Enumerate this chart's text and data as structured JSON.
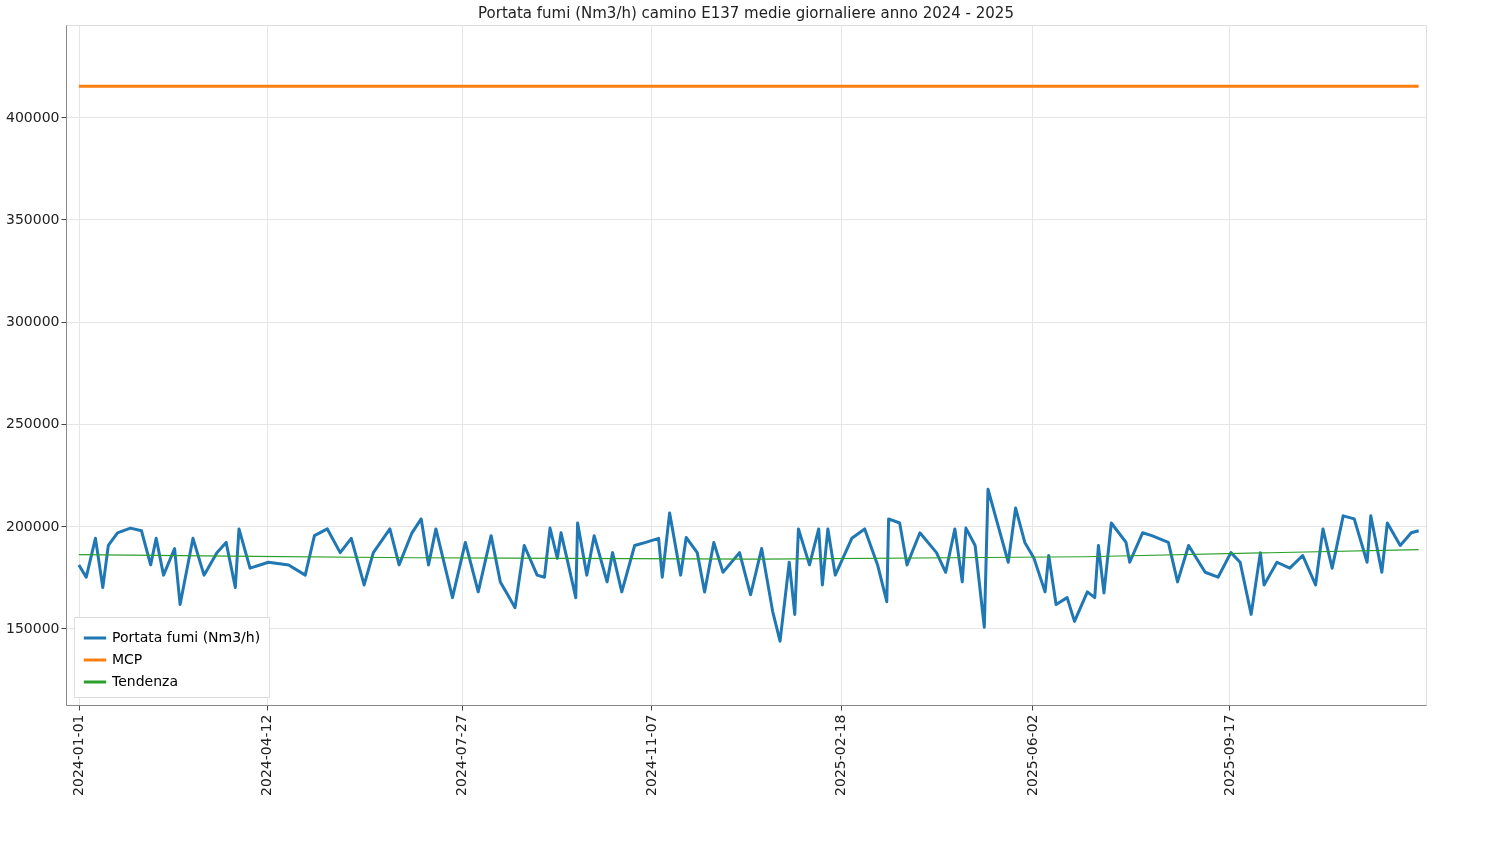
{
  "chart_data": {
    "type": "line",
    "title": "Portata fumi (Nm3/h) camino E137 medie giornaliere anno 2024 - 2025",
    "xlim": [
      "2023-12-25",
      "2026-01-02"
    ],
    "xticks": [
      "2024-01-01",
      "2024-04-12",
      "2024-07-27",
      "2024-11-07",
      "2025-02-18",
      "2025-06-02",
      "2025-09-17"
    ],
    "ylim": [
      112500,
      445000
    ],
    "yticks": [
      150000,
      200000,
      250000,
      300000,
      350000,
      400000
    ],
    "grid": true,
    "legend": "bottom left",
    "series": [
      {
        "name": "Portata fumi (Nm3/h)",
        "color": "#1f77b4",
        "x": [
          "2024-01-01",
          "2024-01-05",
          "2024-01-10",
          "2024-01-14",
          "2024-01-17",
          "2024-01-22",
          "2024-01-29",
          "2024-02-04",
          "2024-02-09",
          "2024-02-12",
          "2024-02-16",
          "2024-02-22",
          "2024-02-25",
          "2024-03-03",
          "2024-03-09",
          "2024-03-16",
          "2024-03-21",
          "2024-03-26",
          "2024-03-28",
          "2024-04-03",
          "2024-04-13",
          "2024-04-24",
          "2024-05-03",
          "2024-05-08",
          "2024-05-15",
          "2024-05-22",
          "2024-05-28",
          "2024-06-04",
          "2024-06-09",
          "2024-06-18",
          "2024-06-23",
          "2024-06-30",
          "2024-07-05",
          "2024-07-09",
          "2024-07-13",
          "2024-07-22",
          "2024-07-29",
          "2024-08-05",
          "2024-08-12",
          "2024-08-17",
          "2024-08-25",
          "2024-08-30",
          "2024-09-06",
          "2024-09-10",
          "2024-09-13",
          "2024-09-17",
          "2024-09-19",
          "2024-09-23",
          "2024-09-27",
          "2024-09-28",
          "2024-10-03",
          "2024-10-07",
          "2024-10-14",
          "2024-10-17",
          "2024-10-22",
          "2024-10-29",
          "2024-11-04",
          "2024-11-11",
          "2024-11-13",
          "2024-11-17",
          "2024-11-23",
          "2024-11-26",
          "2024-12-02",
          "2024-12-06",
          "2024-12-11",
          "2024-12-16",
          "2024-12-25",
          "2024-12-31",
          "2025-01-06",
          "2025-01-12",
          "2025-01-16",
          "2025-01-21",
          "2025-01-24",
          "2025-01-26",
          "2025-02-01",
          "2025-02-06",
          "2025-02-08",
          "2025-02-11",
          "2025-02-15",
          "2025-02-24",
          "2025-03-03",
          "2025-03-10",
          "2025-03-15",
          "2025-03-16",
          "2025-03-22",
          "2025-03-26",
          "2025-04-02",
          "2025-04-11",
          "2025-04-16",
          "2025-04-21",
          "2025-04-25",
          "2025-04-27",
          "2025-05-02",
          "2025-05-07",
          "2025-05-09",
          "2025-05-13",
          "2025-05-20",
          "2025-05-24",
          "2025-05-29",
          "2025-06-03",
          "2025-06-09",
          "2025-06-11",
          "2025-06-15",
          "2025-06-21",
          "2025-06-25",
          "2025-07-02",
          "2025-07-06",
          "2025-07-08",
          "2025-07-11",
          "2025-07-15",
          "2025-07-23",
          "2025-07-25",
          "2025-08-01",
          "2025-08-06",
          "2025-08-15",
          "2025-08-20",
          "2025-08-26",
          "2025-09-04",
          "2025-09-11",
          "2025-09-18",
          "2025-09-23",
          "2025-09-29",
          "2025-10-04",
          "2025-10-06",
          "2025-10-13",
          "2025-10-20",
          "2025-10-27",
          "2025-11-03",
          "2025-11-07",
          "2025-11-12",
          "2025-11-18",
          "2025-11-24",
          "2025-12-01",
          "2025-12-03",
          "2025-12-09",
          "2025-12-12",
          "2025-12-19",
          "2025-12-25",
          "2025-12-29"
        ],
        "values": [
          181000,
          175000,
          194000,
          170000,
          190500,
          196700,
          199000,
          197700,
          181000,
          194000,
          176000,
          189000,
          161600,
          194000,
          176000,
          187000,
          192000,
          170000,
          198600,
          179400,
          182300,
          181000,
          176000,
          195300,
          198600,
          187000,
          194000,
          171200,
          187000,
          198600,
          181000,
          196700,
          203500,
          181000,
          198600,
          165000,
          192000,
          167800,
          195300,
          172700,
          160100,
          190500,
          176000,
          175000,
          199000,
          184200,
          196700,
          181000,
          165000,
          201500,
          176000,
          195300,
          172700,
          187000,
          167800,
          190500,
          192000,
          194000,
          175000,
          206400,
          176000,
          194400,
          187000,
          167800,
          192000,
          177400,
          187000,
          166400,
          189000,
          158200,
          143700,
          182300,
          156800,
          198600,
          181000,
          198600,
          171200,
          198600,
          176000,
          194000,
          198600,
          181000,
          163000,
          203500,
          201500,
          181000,
          196700,
          187000,
          177400,
          198600,
          172700,
          199000,
          190500,
          150500,
          218000,
          205000,
          182300,
          208800,
          192000,
          184200,
          167800,
          185600,
          161600,
          165000,
          153400,
          167800,
          165000,
          190500,
          167300,
          201500,
          192000,
          182300,
          196700,
          195300,
          192000,
          172700,
          190500,
          177400,
          175000,
          187000,
          182300,
          156800,
          187000,
          171200,
          182300,
          179400,
          185600,
          171200,
          198600,
          179400,
          205000,
          203500,
          182300,
          205000,
          177400,
          201500,
          190500,
          196700,
          197700
        ]
      },
      {
        "name": "MCP",
        "color": "#ff7f0e",
        "x": [
          "2024-01-01",
          "2025-12-29"
        ],
        "values": [
          415000,
          415000
        ]
      },
      {
        "name": "Tendenza",
        "color": "#2ca02c",
        "x": [
          "2024-01-01",
          "2024-07-01",
          "2025-01-01",
          "2025-07-01",
          "2025-12-29"
        ],
        "values": [
          186000,
          184500,
          183800,
          185000,
          188500
        ]
      }
    ]
  }
}
